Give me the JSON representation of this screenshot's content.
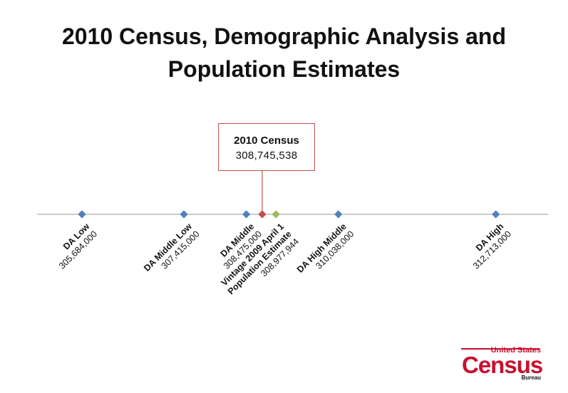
{
  "title_line1": "2010 Census, Demographic Analysis and",
  "title_line2": "Population Estimates",
  "callout": {
    "label": "2010 Census",
    "value": "308,745,538",
    "border_color": "#c0504d"
  },
  "logo": {
    "line1": "United States",
    "line2": "Census",
    "line3": "Bureau",
    "color": "#c8102e"
  },
  "colors": {
    "axis": "#9a9a9a",
    "blue": "#4f81bd",
    "red": "#c0504d",
    "green": "#9bbb59"
  },
  "chart_data": {
    "type": "scatter",
    "xlim": [
      304800000,
      313600000
    ],
    "markers": [
      {
        "name": "DA Low",
        "value_label": "305,684,000",
        "value": 305684000,
        "color": "blue",
        "label_lines": 2
      },
      {
        "name": "DA Middle Low",
        "value_label": "307,415,000",
        "value": 307415000,
        "color": "blue",
        "label_lines": 2
      },
      {
        "name": "DA Middle",
        "value_label": "308,475,000",
        "value": 308475000,
        "color": "blue",
        "label_lines": 2
      },
      {
        "name": "2010 Census",
        "value_label": "308,745,538",
        "value": 308745538,
        "color": "red",
        "callout": true
      },
      {
        "name": "Vintage 2009 April 1 Population Estimate",
        "name_lines": [
          "Vintage 2009 April 1",
          "Population Estimate"
        ],
        "value_label": "308,977,944",
        "value": 308977944,
        "color": "green",
        "label_lines": 3
      },
      {
        "name": "DA High Middle",
        "value_label": "310,038,000",
        "value": 310038000,
        "color": "blue",
        "label_lines": 2
      },
      {
        "name": "DA High",
        "value_label": "312,713,000",
        "value": 312713000,
        "color": "blue",
        "label_lines": 2
      }
    ]
  }
}
